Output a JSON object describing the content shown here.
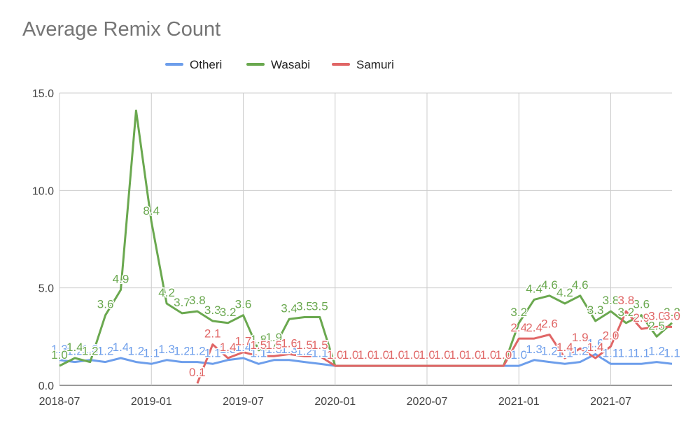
{
  "chart_data": {
    "type": "line",
    "title": "Average Remix Count",
    "legend_position": "top",
    "grid": true,
    "ylim": [
      0,
      15
    ],
    "y_ticks": [
      "0.0",
      "5.0",
      "10.0",
      "15.0"
    ],
    "x_ticks": [
      "2018-07",
      "2019-01",
      "2019-07",
      "2020-01",
      "2020-07",
      "2021-01",
      "2021-07"
    ],
    "x": [
      "2018-07",
      "2018-08",
      "2018-09",
      "2018-10",
      "2018-11",
      "2018-12",
      "2019-01",
      "2019-02",
      "2019-03",
      "2019-04",
      "2019-05",
      "2019-06",
      "2019-07",
      "2019-08",
      "2019-09",
      "2019-10",
      "2019-11",
      "2019-12",
      "2020-01",
      "2020-02",
      "2020-03",
      "2020-04",
      "2020-05",
      "2020-06",
      "2020-07",
      "2020-08",
      "2020-09",
      "2020-10",
      "2020-11",
      "2020-12",
      "2021-01",
      "2021-02",
      "2021-03",
      "2021-04",
      "2021-05",
      "2021-06",
      "2021-07",
      "2021-08",
      "2021-09",
      "2021-10",
      "2021-11"
    ],
    "series": [
      {
        "name": "Otheri",
        "color": "#6d9eeb",
        "values": [
          1.3,
          1.2,
          1.3,
          1.2,
          1.4,
          1.2,
          1.1,
          1.3,
          1.2,
          1.2,
          1.1,
          1.3,
          1.4,
          1.1,
          1.3,
          1.3,
          1.2,
          1.1,
          1.0,
          1.0,
          1.0,
          1.0,
          1.0,
          1.0,
          1.0,
          1.0,
          1.0,
          1.0,
          1.0,
          1.0,
          1.0,
          1.3,
          1.2,
          1.1,
          1.2,
          1.6,
          1.1,
          1.1,
          1.1,
          1.2,
          1.1
        ],
        "labels": [
          "1.3",
          "1.2",
          "1.3",
          "1.2",
          "1.4",
          "1.2",
          "1.1",
          "1.3",
          "1.2",
          "1.2",
          "1.1",
          "1.3",
          "1.4",
          "1.1",
          "1.3",
          "1.3",
          "1.2",
          "1.1",
          "1.0",
          "1.0",
          "1.0",
          "1.0",
          "1.0",
          "1.0",
          "1.0",
          "1.0",
          "1.0",
          "1.0",
          "1.0",
          "1.0",
          "1.0",
          "1.3",
          "1.2",
          "1.1",
          "1.2",
          "1.6",
          "1.1",
          "1.1",
          "1.1",
          "1.2",
          "1.1"
        ]
      },
      {
        "name": "Wasabi",
        "color": "#6aa84f",
        "values": [
          1.0,
          1.4,
          1.2,
          3.6,
          4.9,
          14.1,
          8.4,
          4.2,
          3.7,
          3.8,
          3.3,
          3.2,
          3.6,
          1.8,
          1.9,
          3.4,
          3.5,
          3.5,
          1.0,
          1.0,
          1.0,
          1.0,
          1.0,
          1.0,
          1.0,
          1.0,
          1.0,
          1.0,
          1.0,
          1.0,
          3.2,
          4.4,
          4.6,
          4.2,
          4.6,
          3.3,
          3.8,
          3.2,
          3.6,
          2.5,
          3.2
        ],
        "labels": [
          "1.0",
          "1.4",
          "1.2",
          "3.6",
          "4.9",
          "",
          "8.4",
          "4.2",
          "3.7",
          "3.8",
          "3.3",
          "3.2",
          "3.6",
          "1.8",
          "1.9",
          "3.4",
          "3.5",
          "3.5",
          "",
          "",
          "",
          "",
          "",
          "",
          "",
          "",
          "",
          "",
          "",
          "",
          "3.2",
          "4.4",
          "4.6",
          "4.2",
          "4.6",
          "3.3",
          "3.8",
          "3.2",
          "3.6",
          "2.5",
          "3.2"
        ]
      },
      {
        "name": "Samuri",
        "color": "#e06666",
        "values": [
          null,
          null,
          null,
          null,
          null,
          null,
          null,
          null,
          null,
          0.1,
          2.1,
          1.4,
          1.7,
          1.5,
          1.5,
          1.6,
          1.5,
          1.5,
          1.0,
          1.0,
          1.0,
          1.0,
          1.0,
          1.0,
          1.0,
          1.0,
          1.0,
          1.0,
          1.0,
          1.0,
          2.4,
          2.4,
          2.6,
          1.4,
          1.9,
          1.4,
          2.0,
          3.8,
          2.9,
          3.0,
          3.0
        ],
        "labels": [
          "",
          "",
          "",
          "",
          "",
          "",
          "",
          "",
          "",
          "0.1",
          "2.1",
          "1.4",
          "1.7",
          "1.5",
          "1.5",
          "1.6",
          "1.5",
          "1.5",
          "1.0",
          "1.0",
          "1.0",
          "1.0",
          "1.0",
          "1.0",
          "1.0",
          "1.0",
          "1.0",
          "1.0",
          "1.0",
          "1.0",
          "2.4",
          "2.4",
          "2.6",
          "1.4",
          "1.9",
          "1.4",
          "2.0",
          "3.8",
          "2.9",
          "3.0",
          "3.0"
        ]
      }
    ]
  }
}
